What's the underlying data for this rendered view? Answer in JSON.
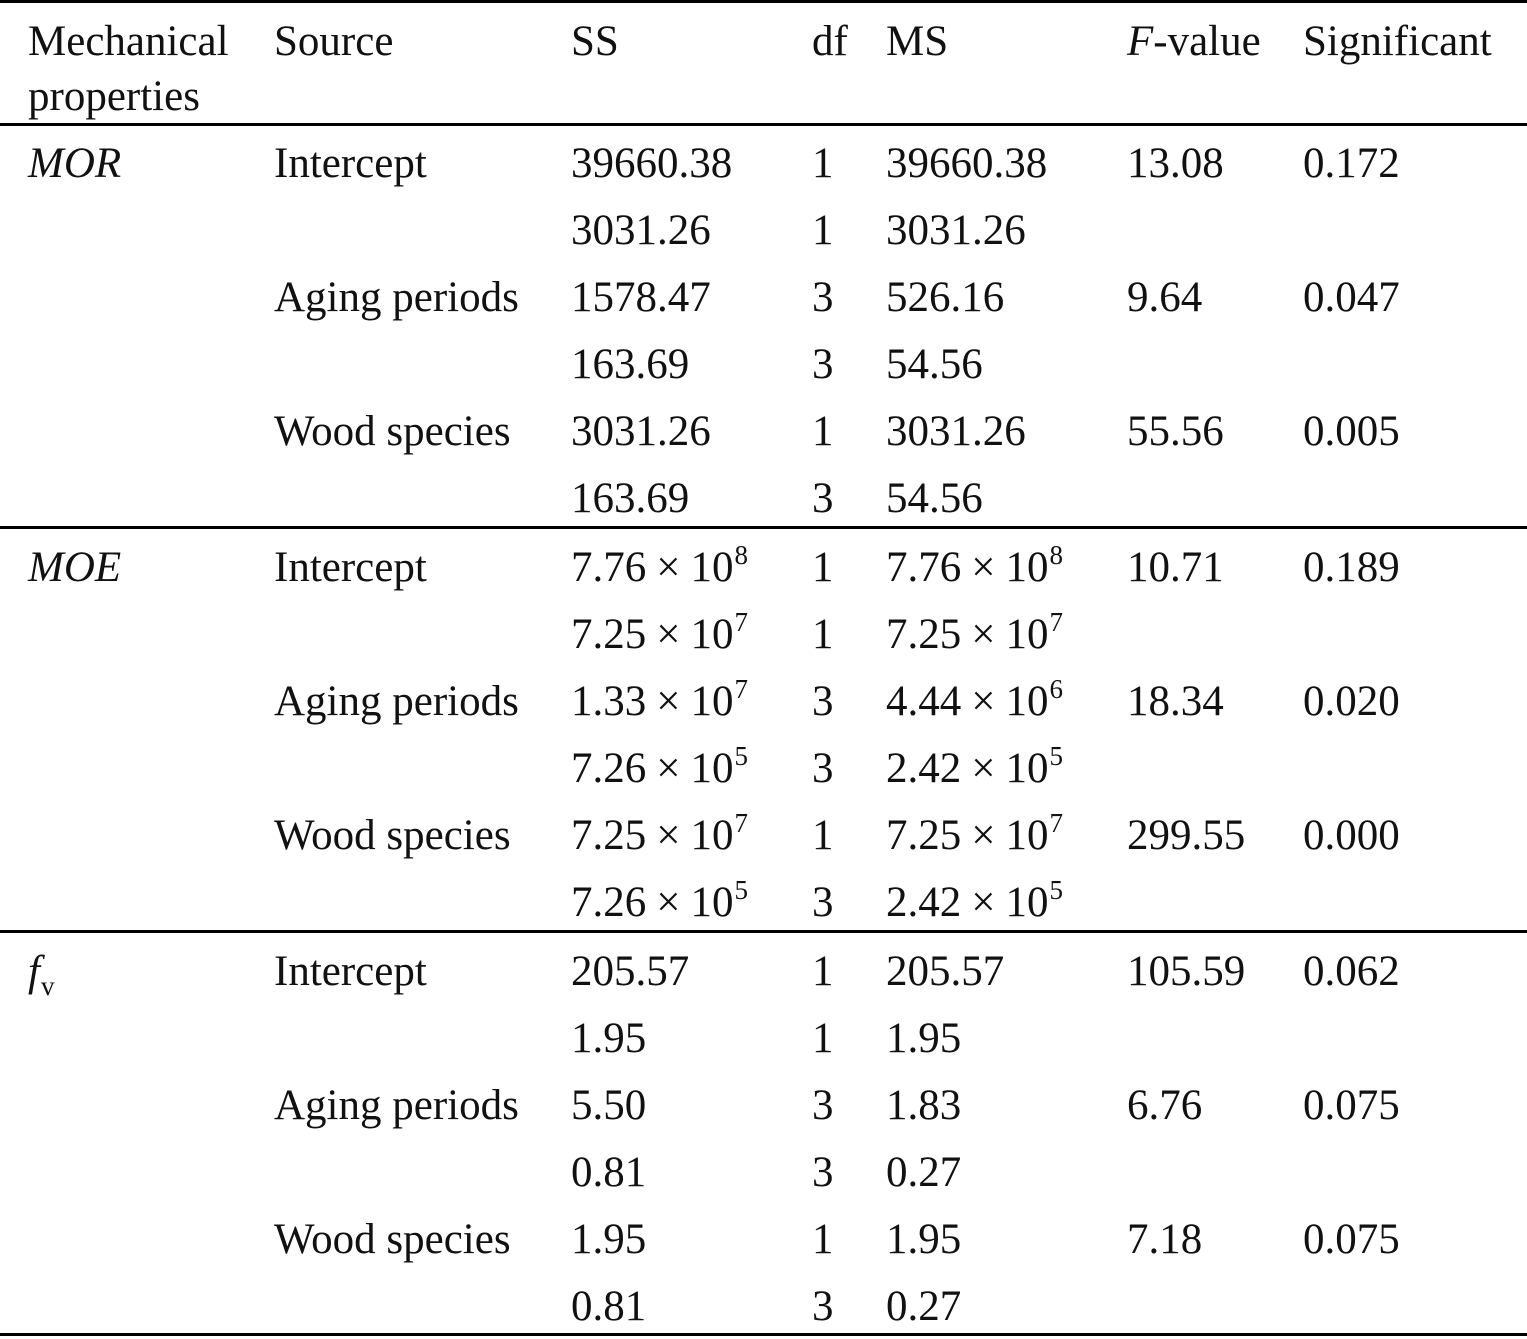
{
  "headers": {
    "mech_line1": "Mechanical",
    "mech_line2": "properties",
    "source": "Source",
    "ss": "SS",
    "df": "df",
    "ms": "MS",
    "f_italic": "F",
    "f_rest": "-value",
    "sig": "Significant"
  },
  "sci": {
    "times": "×",
    "base": "10"
  },
  "groups": [
    {
      "name": "MOR",
      "name_sub": "",
      "italic": true,
      "rows": [
        {
          "source": "Intercept",
          "ss": "39660.38",
          "df": "1",
          "ms": "39660.38",
          "f": "13.08",
          "sig": "0.172"
        },
        {
          "source": "",
          "ss": "3031.26",
          "df": "1",
          "ms": "3031.26",
          "f": "",
          "sig": ""
        },
        {
          "source": "Aging periods",
          "ss": "1578.47",
          "df": "3",
          "ms": "526.16",
          "f": "9.64",
          "sig": "0.047"
        },
        {
          "source": "",
          "ss": "163.69",
          "df": "3",
          "ms": "54.56",
          "f": "",
          "sig": ""
        },
        {
          "source": "Wood species",
          "ss": "3031.26",
          "df": "1",
          "ms": "3031.26",
          "f": "55.56",
          "sig": "0.005"
        },
        {
          "source": "",
          "ss": "163.69",
          "df": "3",
          "ms": "54.56",
          "f": "",
          "sig": ""
        }
      ]
    },
    {
      "name": "MOE",
      "name_sub": "",
      "italic": true,
      "rows": [
        {
          "source": "Intercept",
          "ss_m": "7.76",
          "ss_e": "8",
          "df": "1",
          "ms_m": "7.76",
          "ms_e": "8",
          "f": "10.71",
          "sig": "0.189"
        },
        {
          "source": "",
          "ss_m": "7.25",
          "ss_e": "7",
          "df": "1",
          "ms_m": "7.25",
          "ms_e": "7",
          "f": "",
          "sig": ""
        },
        {
          "source": "Aging periods",
          "ss_m": "1.33",
          "ss_e": "7",
          "df": "3",
          "ms_m": "4.44",
          "ms_e": "6",
          "f": "18.34",
          "sig": "0.020"
        },
        {
          "source": "",
          "ss_m": "7.26",
          "ss_e": "5",
          "df": "3",
          "ms_m": "2.42",
          "ms_e": "5",
          "f": "",
          "sig": ""
        },
        {
          "source": "Wood species",
          "ss_m": "7.25",
          "ss_e": "7",
          "df": "1",
          "ms_m": "7.25",
          "ms_e": "7",
          "f": "299.55",
          "sig": "0.000"
        },
        {
          "source": "",
          "ss_m": "7.26",
          "ss_e": "5",
          "df": "3",
          "ms_m": "2.42",
          "ms_e": "5",
          "f": "",
          "sig": ""
        }
      ]
    },
    {
      "name": "f",
      "name_sub": "v",
      "italic": true,
      "rows": [
        {
          "source": "Intercept",
          "ss": "205.57",
          "df": "1",
          "ms": "205.57",
          "f": "105.59",
          "sig": "0.062"
        },
        {
          "source": "",
          "ss": "1.95",
          "df": "1",
          "ms": "1.95",
          "f": "",
          "sig": ""
        },
        {
          "source": "Aging periods",
          "ss": "5.50",
          "df": "3",
          "ms": "1.83",
          "f": "6.76",
          "sig": "0.075"
        },
        {
          "source": "",
          "ss": "0.81",
          "df": "3",
          "ms": "0.27",
          "f": "",
          "sig": ""
        },
        {
          "source": "Wood species",
          "ss": "1.95",
          "df": "1",
          "ms": "1.95",
          "f": "7.18",
          "sig": "0.075"
        },
        {
          "source": "",
          "ss": "0.81",
          "df": "3",
          "ms": "0.27",
          "f": "",
          "sig": ""
        }
      ]
    }
  ]
}
